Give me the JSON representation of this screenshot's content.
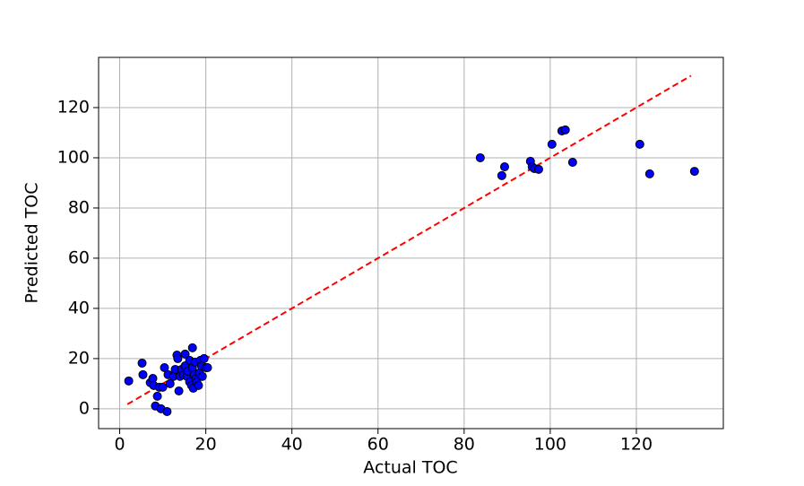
{
  "chart_data": {
    "type": "scatter",
    "x_label": "Actual TOC",
    "y_label": "Predicted TOC",
    "x": [
      83.75,
      89.4,
      88.75,
      95.4,
      95.8,
      96.3,
      97.3,
      100.4,
      102.7,
      103.5,
      105.2,
      120.8,
      123.1,
      133.5,
      2.1,
      5.2,
      5.4,
      7.1,
      7.7,
      7.9,
      8.3,
      8.75,
      9.6,
      9.2,
      10,
      10.4,
      11,
      11.25,
      11.7,
      12.5,
      12.9,
      13.3,
      13.5,
      13.75,
      14,
      14.4,
      14.8,
      15.2,
      15.2,
      15.6,
      15.8,
      16.25,
      16.25,
      16.7,
      16.9,
      16.9,
      17.1,
      17.3,
      17.5,
      17.7,
      17.9,
      18.3,
      18.5,
      18.75,
      19,
      19.2,
      19.6,
      20,
      20.4
    ],
    "values": [
      100,
      96.4,
      92.9,
      98.6,
      96.4,
      95.7,
      95.4,
      105.4,
      110.7,
      111.1,
      98.2,
      105.4,
      93.6,
      94.6,
      11.1,
      18.2,
      13.6,
      10.4,
      12.1,
      9.3,
      1.1,
      5,
      0,
      8.6,
      8.6,
      16.4,
      -1.1,
      13.6,
      10,
      12.9,
      15.7,
      21.4,
      20,
      7.1,
      12.9,
      15.7,
      13.6,
      21.8,
      17.1,
      12.9,
      15,
      19.3,
      10.7,
      9.3,
      24.3,
      16.4,
      8.2,
      13.6,
      18.6,
      12.1,
      10.7,
      9.3,
      14.3,
      19.3,
      17.1,
      12.9,
      20,
      16.4,
      16.4
    ],
    "color": "#0000ff",
    "edge_color": "#000000",
    "reference_line": {
      "x": [
        1.8,
        132.7
      ],
      "y": [
        1.8,
        132.7
      ],
      "color": "#ff0000",
      "style": "dashed"
    },
    "xlim": [
      -4.9,
      140.2
    ],
    "ylim": [
      -7.9,
      140
    ],
    "xticks": [
      0,
      20,
      40,
      60,
      80,
      100,
      120
    ],
    "yticks": [
      0,
      20,
      40,
      60,
      80,
      100,
      120
    ],
    "grid": true
  }
}
